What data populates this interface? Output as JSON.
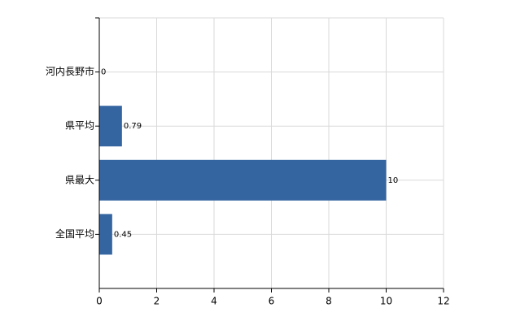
{
  "chart_data": {
    "type": "barh",
    "categories": [
      "河内長野市",
      "県平均",
      "県最大",
      "全国平均"
    ],
    "values": [
      0,
      0.79,
      10,
      0.45
    ],
    "color": "#3565a1",
    "xlim": [
      0,
      12
    ],
    "xticks": [
      0,
      2,
      4,
      6,
      8,
      10,
      12
    ],
    "grid": true
  }
}
